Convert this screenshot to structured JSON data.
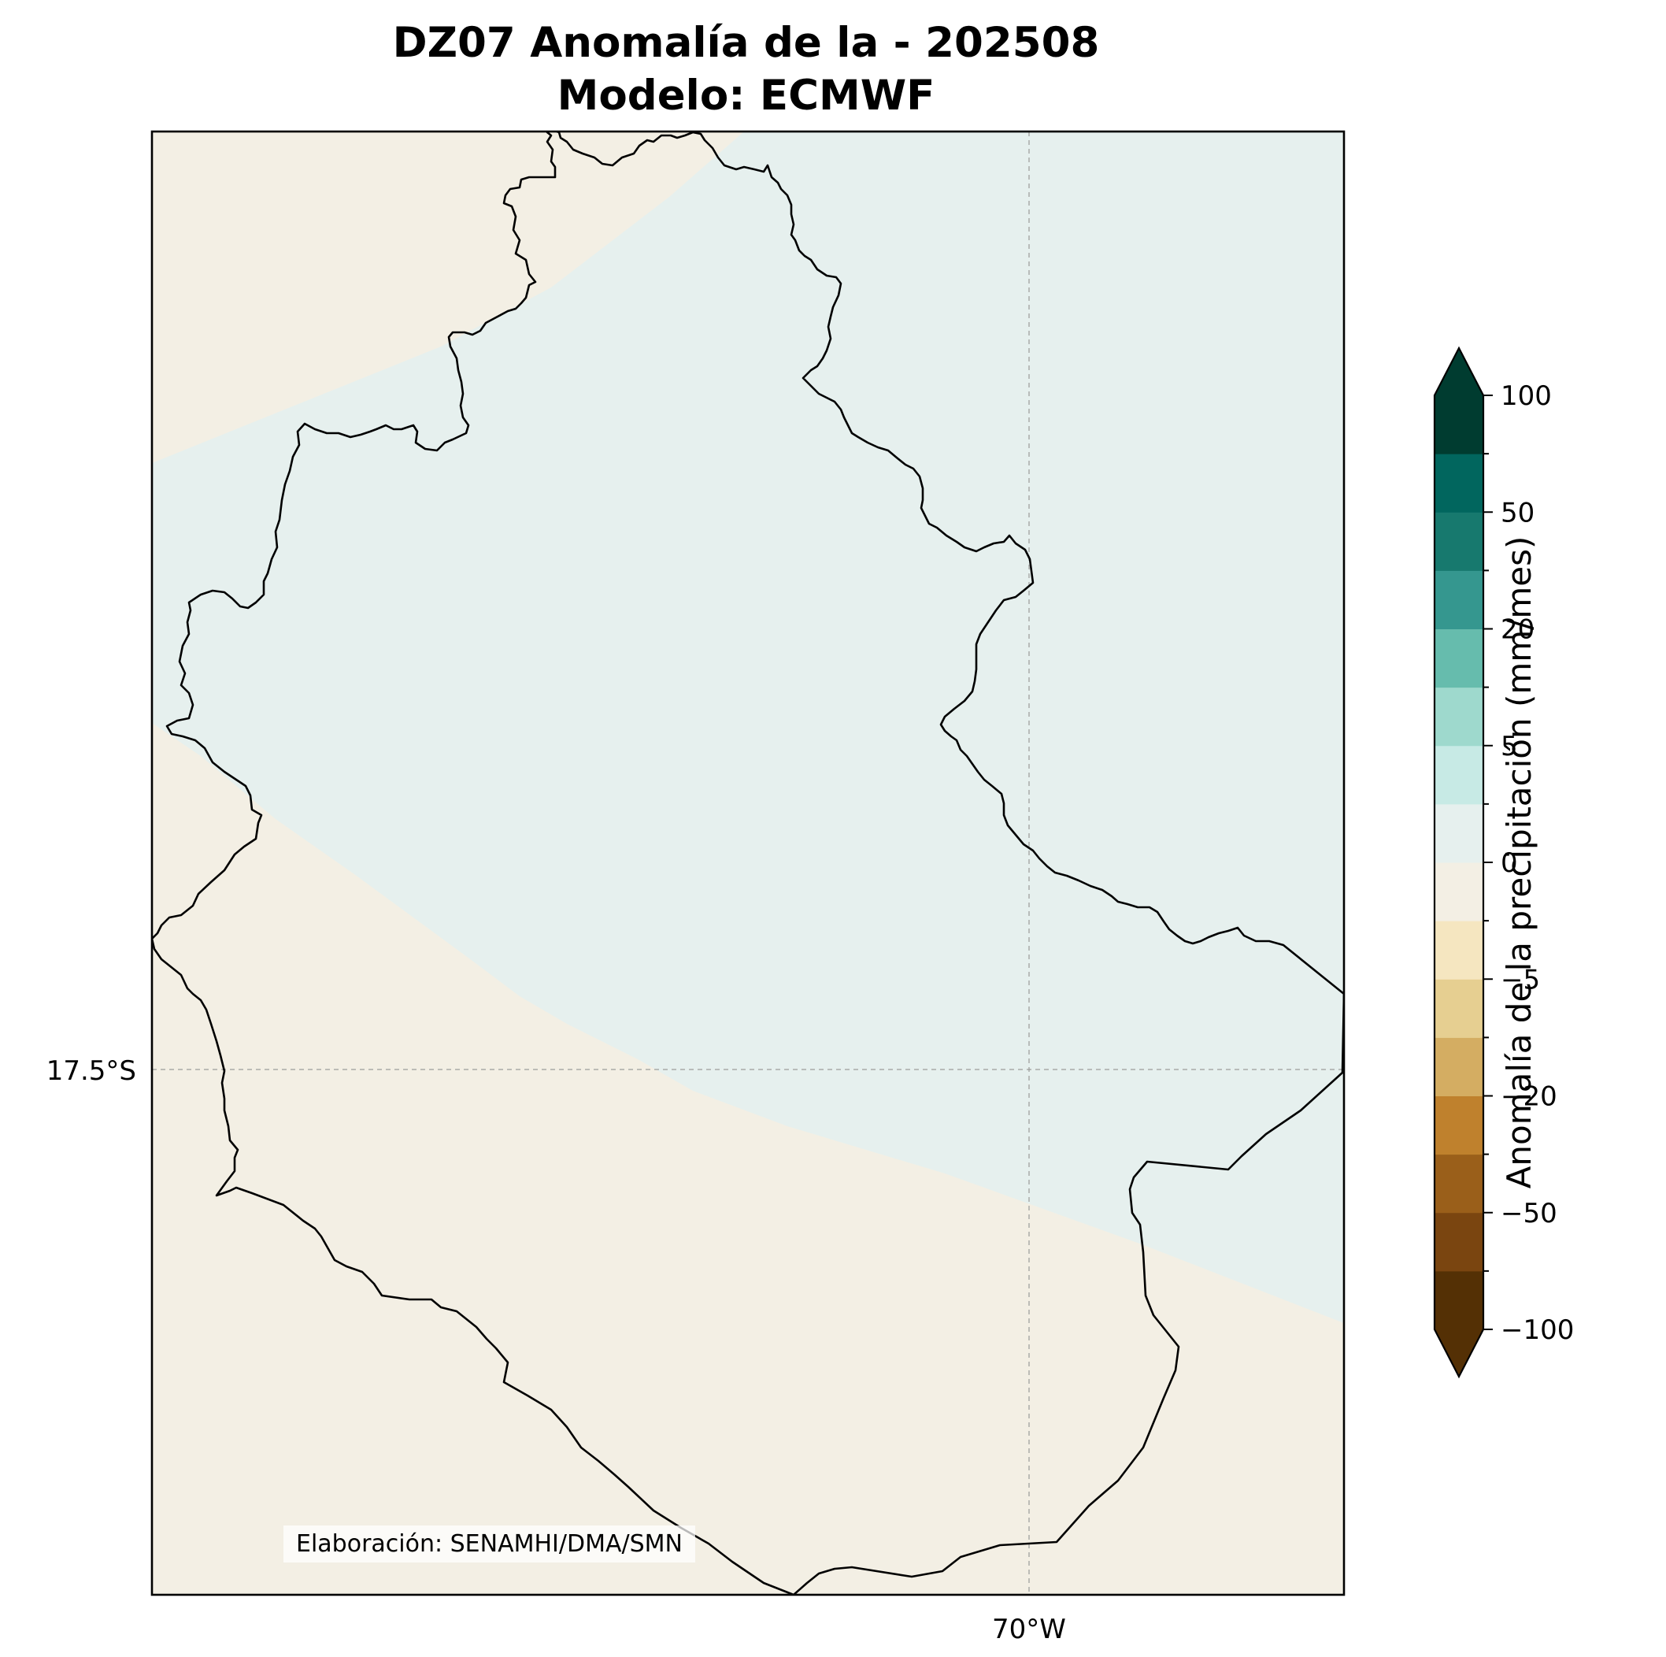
{
  "title": {
    "line1": "DZ07 Anomalía de la - 202508",
    "line2": "Modelo: ECMWF"
  },
  "map": {
    "lat_tick_label": "17.5°S",
    "lon_tick_label": "70°W",
    "credit": "Elaboración: SENAMHI/DMA/SMN",
    "grid": true,
    "anomaly_fill": {
      "north_band": {
        "range": "0 to 2",
        "color": "#e6f0ee"
      },
      "southwest_and_south": {
        "range": "-2 to 0",
        "color": "#f3efe4"
      }
    }
  },
  "colorbar": {
    "label": "Anomalía de la precipitación (mm/mes)",
    "extend": "both",
    "levels": [
      -100,
      -75,
      -50,
      -30,
      -20,
      -10,
      -5,
      -2,
      0,
      2,
      5,
      10,
      20,
      30,
      50,
      75,
      100
    ],
    "major_ticks": [
      {
        "value": 100,
        "label": "100"
      },
      {
        "value": 50,
        "label": "50"
      },
      {
        "value": 20,
        "label": "20"
      },
      {
        "value": 5,
        "label": "5"
      },
      {
        "value": 0,
        "label": "0"
      },
      {
        "value": -5,
        "label": "−5"
      },
      {
        "value": -20,
        "label": "−20"
      },
      {
        "value": -50,
        "label": "−50"
      },
      {
        "value": -100,
        "label": "−100"
      }
    ],
    "colors": [
      "#543005",
      "#7a4510",
      "#9a5f1a",
      "#bf812d",
      "#d4ad62",
      "#e6cf91",
      "#f5e6c0",
      "#f3efe4",
      "#e6f0ee",
      "#c7eae5",
      "#9ed9cd",
      "#66bcad",
      "#35978f",
      "#17796e",
      "#01665e",
      "#003c30"
    ],
    "under_color": "#543005",
    "over_color": "#003c30"
  }
}
